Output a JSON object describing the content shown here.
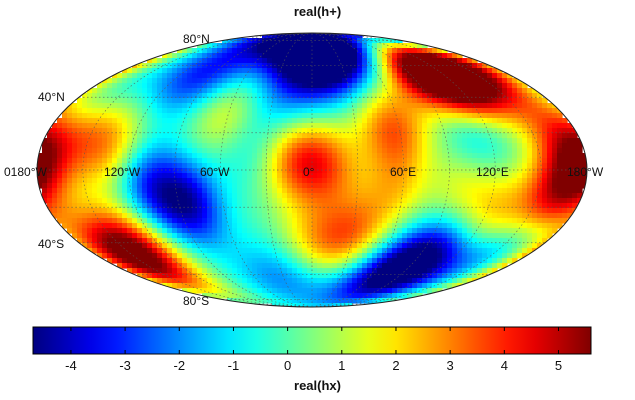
{
  "title": "real(h+)",
  "colorbar": {
    "label": "real(hx)",
    "min": -4.7,
    "max": 5.6,
    "ticks": [
      "-4",
      "-3",
      "-2",
      "-1",
      "0",
      "1",
      "2",
      "3",
      "4",
      "5"
    ],
    "tick_values": [
      -4,
      -3,
      -2,
      -1,
      0,
      1,
      2,
      3,
      4,
      5
    ],
    "colormap": "jet",
    "stops": [
      "#00008f",
      "#0000ff",
      "#00ffff",
      "#ffff00",
      "#ff0000",
      "#800000"
    ]
  },
  "projection": "Mollweide",
  "lon_labels": [
    "0180°W",
    "120°W",
    "60°W",
    "0°",
    "60°E",
    "120°E",
    "180°W"
  ],
  "lat_labels": [
    "80°N",
    "40°N",
    "40°S",
    "80°S"
  ],
  "field_blobs": [
    {
      "lon": -10,
      "lat": 5,
      "v": 3.0
    },
    {
      "lon": 10,
      "lat": 2,
      "v": 2.5
    },
    {
      "lon": 55,
      "lat": 22,
      "v": 3.2
    },
    {
      "lon": 120,
      "lat": 48,
      "v": 5.4
    },
    {
      "lon": 95,
      "lat": 55,
      "v": 4.2
    },
    {
      "lon": 150,
      "lat": 60,
      "v": 4.0
    },
    {
      "lon": 10,
      "lat": 60,
      "v": -4.5
    },
    {
      "lon": -5,
      "lat": 80,
      "v": -4.0
    },
    {
      "lon": 30,
      "lat": 75,
      "v": -3.2
    },
    {
      "lon": -100,
      "lat": 52,
      "v": -3.0
    },
    {
      "lon": -85,
      "lat": -18,
      "v": -4.2
    },
    {
      "lon": -110,
      "lat": -5,
      "v": -2.8
    },
    {
      "lon": -140,
      "lat": -42,
      "v": 4.2
    },
    {
      "lon": -160,
      "lat": -52,
      "v": 3.5
    },
    {
      "lon": 95,
      "lat": -48,
      "v": -4.3
    },
    {
      "lon": 70,
      "lat": -62,
      "v": -3.5
    },
    {
      "lon": 160,
      "lat": -15,
      "v": 3.5
    },
    {
      "lon": 175,
      "lat": 2,
      "v": 2.8
    },
    {
      "lon": -175,
      "lat": 5,
      "v": 2.5
    },
    {
      "lon": 30,
      "lat": -35,
      "v": 2.8
    },
    {
      "lon": 0,
      "lat": -40,
      "v": 2.0
    },
    {
      "lon": 110,
      "lat": 20,
      "v": -1.8
    },
    {
      "lon": 165,
      "lat": 22,
      "v": 2.0
    },
    {
      "lon": 125,
      "lat": -25,
      "v": 2.2
    },
    {
      "lon": -20,
      "lat": 40,
      "v": -1.5
    },
    {
      "lon": -150,
      "lat": 20,
      "v": 2.0
    },
    {
      "lon": -160,
      "lat": 45,
      "v": -1.0
    },
    {
      "lon": -45,
      "lat": 15,
      "v": -1.2
    },
    {
      "lon": -60,
      "lat": 28,
      "v": 2.0
    },
    {
      "lon": 55,
      "lat": -10,
      "v": 1.8
    },
    {
      "lon": 150,
      "lat": -45,
      "v": -2.0
    },
    {
      "lon": 100,
      "lat": -8,
      "v": 1.5
    },
    {
      "lon": -30,
      "lat": -60,
      "v": -2.2
    },
    {
      "lon": -130,
      "lat": 8,
      "v": 2.2
    }
  ]
}
